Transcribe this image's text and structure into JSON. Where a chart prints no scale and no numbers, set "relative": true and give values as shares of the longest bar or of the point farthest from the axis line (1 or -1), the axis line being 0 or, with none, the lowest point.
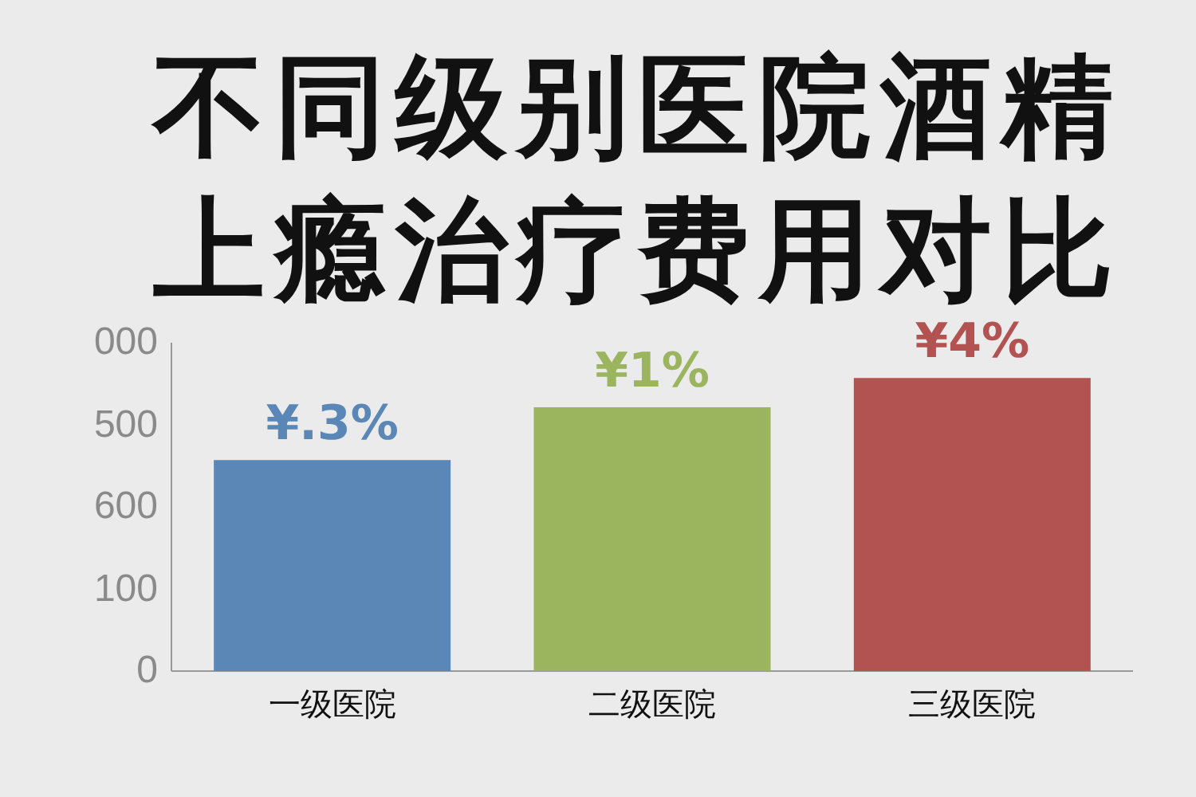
{
  "chart_data": {
    "type": "bar",
    "title": "不同级别医院酒精上瘾治疗费用对比",
    "categories": [
      "一级医院",
      "二级医院",
      "三级医院"
    ],
    "values": [
      0.72,
      0.9,
      1
    ],
    "colors": [
      "#5b87b6",
      "#9bb55f",
      "#b35351"
    ],
    "relative": true,
    "annotations": [
      "¥.3%",
      "¥1%",
      "¥4%",
      "000",
      "500",
      "600",
      "100",
      "0"
    ],
    "grid": false,
    "legend": false
  }
}
